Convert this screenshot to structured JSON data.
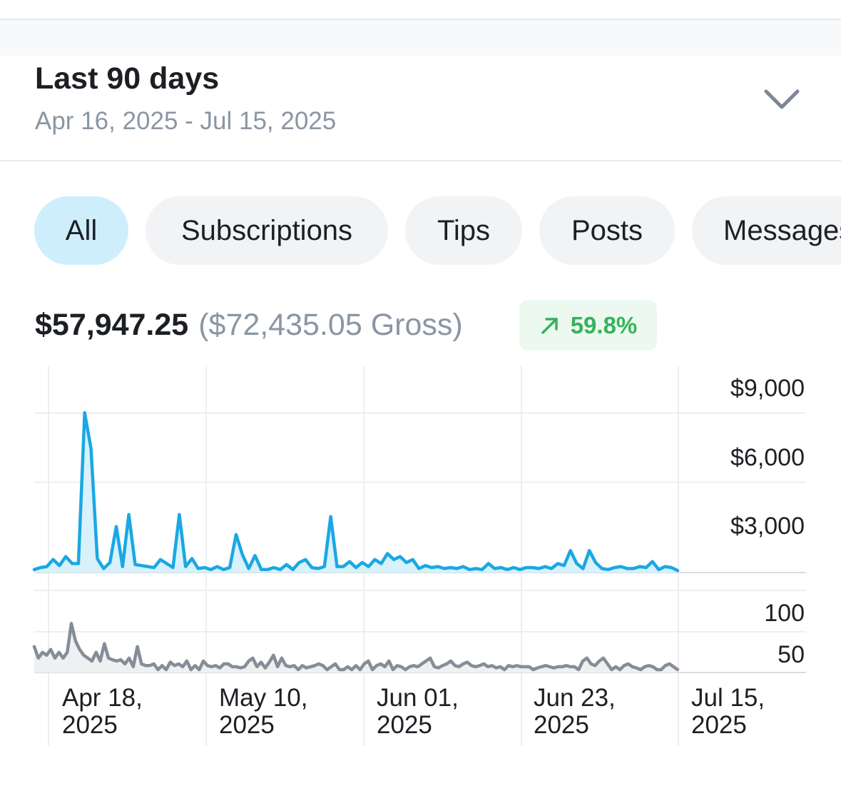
{
  "period": {
    "title": "Last 90 days",
    "range": "Apr 16, 2025 - Jul 15, 2025",
    "dropdown_icon": "chevron-down-icon"
  },
  "tabs": [
    {
      "label": "All",
      "active": true
    },
    {
      "label": "Subscriptions",
      "active": false
    },
    {
      "label": "Tips",
      "active": false
    },
    {
      "label": "Posts",
      "active": false
    },
    {
      "label": "Messages",
      "active": false
    }
  ],
  "summary": {
    "net": "$57,947.25",
    "gross": "($72,435.05 Gross)",
    "change": "59.8%",
    "change_icon": "arrow-up-right-icon",
    "change_color": "#36b35a"
  },
  "colors": {
    "earnings_line": "#1aa8e3",
    "earnings_fill": "#d8f1fb",
    "count_line": "#858d97",
    "count_fill": "#eef0f2",
    "grid": "#eceef1"
  },
  "chart_data": [
    {
      "type": "area",
      "name": "earnings",
      "y_ticks": [
        "$9,000",
        "$6,000",
        "$3,000"
      ],
      "ylim": [
        0,
        9000
      ],
      "values": [
        150,
        250,
        300,
        650,
        350,
        800,
        450,
        450,
        8000,
        6200,
        700,
        200,
        500,
        2300,
        300,
        2900,
        400,
        350,
        300,
        250,
        650,
        450,
        250,
        2900,
        300,
        700,
        200,
        250,
        150,
        300,
        150,
        250,
        1900,
        900,
        200,
        850,
        150,
        150,
        250,
        150,
        400,
        150,
        500,
        650,
        250,
        200,
        300,
        2800,
        300,
        300,
        550,
        250,
        500,
        300,
        650,
        450,
        950,
        650,
        800,
        500,
        650,
        200,
        350,
        250,
        300,
        200,
        250,
        200,
        300,
        150,
        200,
        150,
        450,
        200,
        250,
        150,
        250,
        150,
        250,
        250,
        200,
        300,
        200,
        450,
        350,
        1100,
        450,
        200,
        1100,
        500,
        200,
        150,
        250,
        300,
        200,
        200,
        300,
        250,
        550,
        150,
        300,
        250,
        100
      ]
    },
    {
      "type": "area",
      "name": "count",
      "y_ticks": [
        "100",
        "50"
      ],
      "ylim": [
        0,
        150
      ],
      "values": [
        45,
        25,
        35,
        30,
        40,
        25,
        35,
        25,
        35,
        85,
        55,
        40,
        30,
        25,
        20,
        35,
        20,
        50,
        25,
        22,
        20,
        22,
        15,
        25,
        10,
        45,
        15,
        12,
        12,
        15,
        5,
        12,
        5,
        18,
        12,
        15,
        10,
        20,
        5,
        12,
        5,
        20,
        12,
        10,
        12,
        8,
        15,
        15,
        10,
        10,
        8,
        10,
        20,
        25,
        10,
        18,
        8,
        18,
        30,
        10,
        25,
        12,
        10,
        12,
        5,
        12,
        8,
        10,
        12,
        15,
        12,
        5,
        10,
        15,
        5,
        5,
        10,
        5,
        12,
        5,
        15,
        20,
        5,
        12,
        15,
        10,
        20,
        5,
        12,
        10,
        5,
        10,
        12,
        10,
        15,
        20,
        25,
        10,
        8,
        12,
        15,
        20,
        12,
        10,
        15,
        18,
        12,
        10,
        12,
        15,
        10,
        12,
        8,
        10,
        5,
        12,
        10,
        12,
        10,
        10,
        10,
        5,
        8,
        10,
        12,
        10,
        8,
        10,
        10,
        12,
        10,
        10,
        5,
        20,
        25,
        15,
        12,
        20,
        25,
        15,
        5,
        10,
        5,
        12,
        15,
        10,
        8,
        5,
        10,
        12,
        10,
        5,
        5,
        12,
        15,
        10,
        5
      ]
    }
  ],
  "x_ticks": [
    {
      "line1": "Apr 18,",
      "line2": "2025"
    },
    {
      "line1": "May 10,",
      "line2": "2025"
    },
    {
      "line1": "Jun 01,",
      "line2": "2025"
    },
    {
      "line1": "Jun 23,",
      "line2": "2025"
    },
    {
      "line1": "Jul 15,",
      "line2": "2025"
    }
  ]
}
